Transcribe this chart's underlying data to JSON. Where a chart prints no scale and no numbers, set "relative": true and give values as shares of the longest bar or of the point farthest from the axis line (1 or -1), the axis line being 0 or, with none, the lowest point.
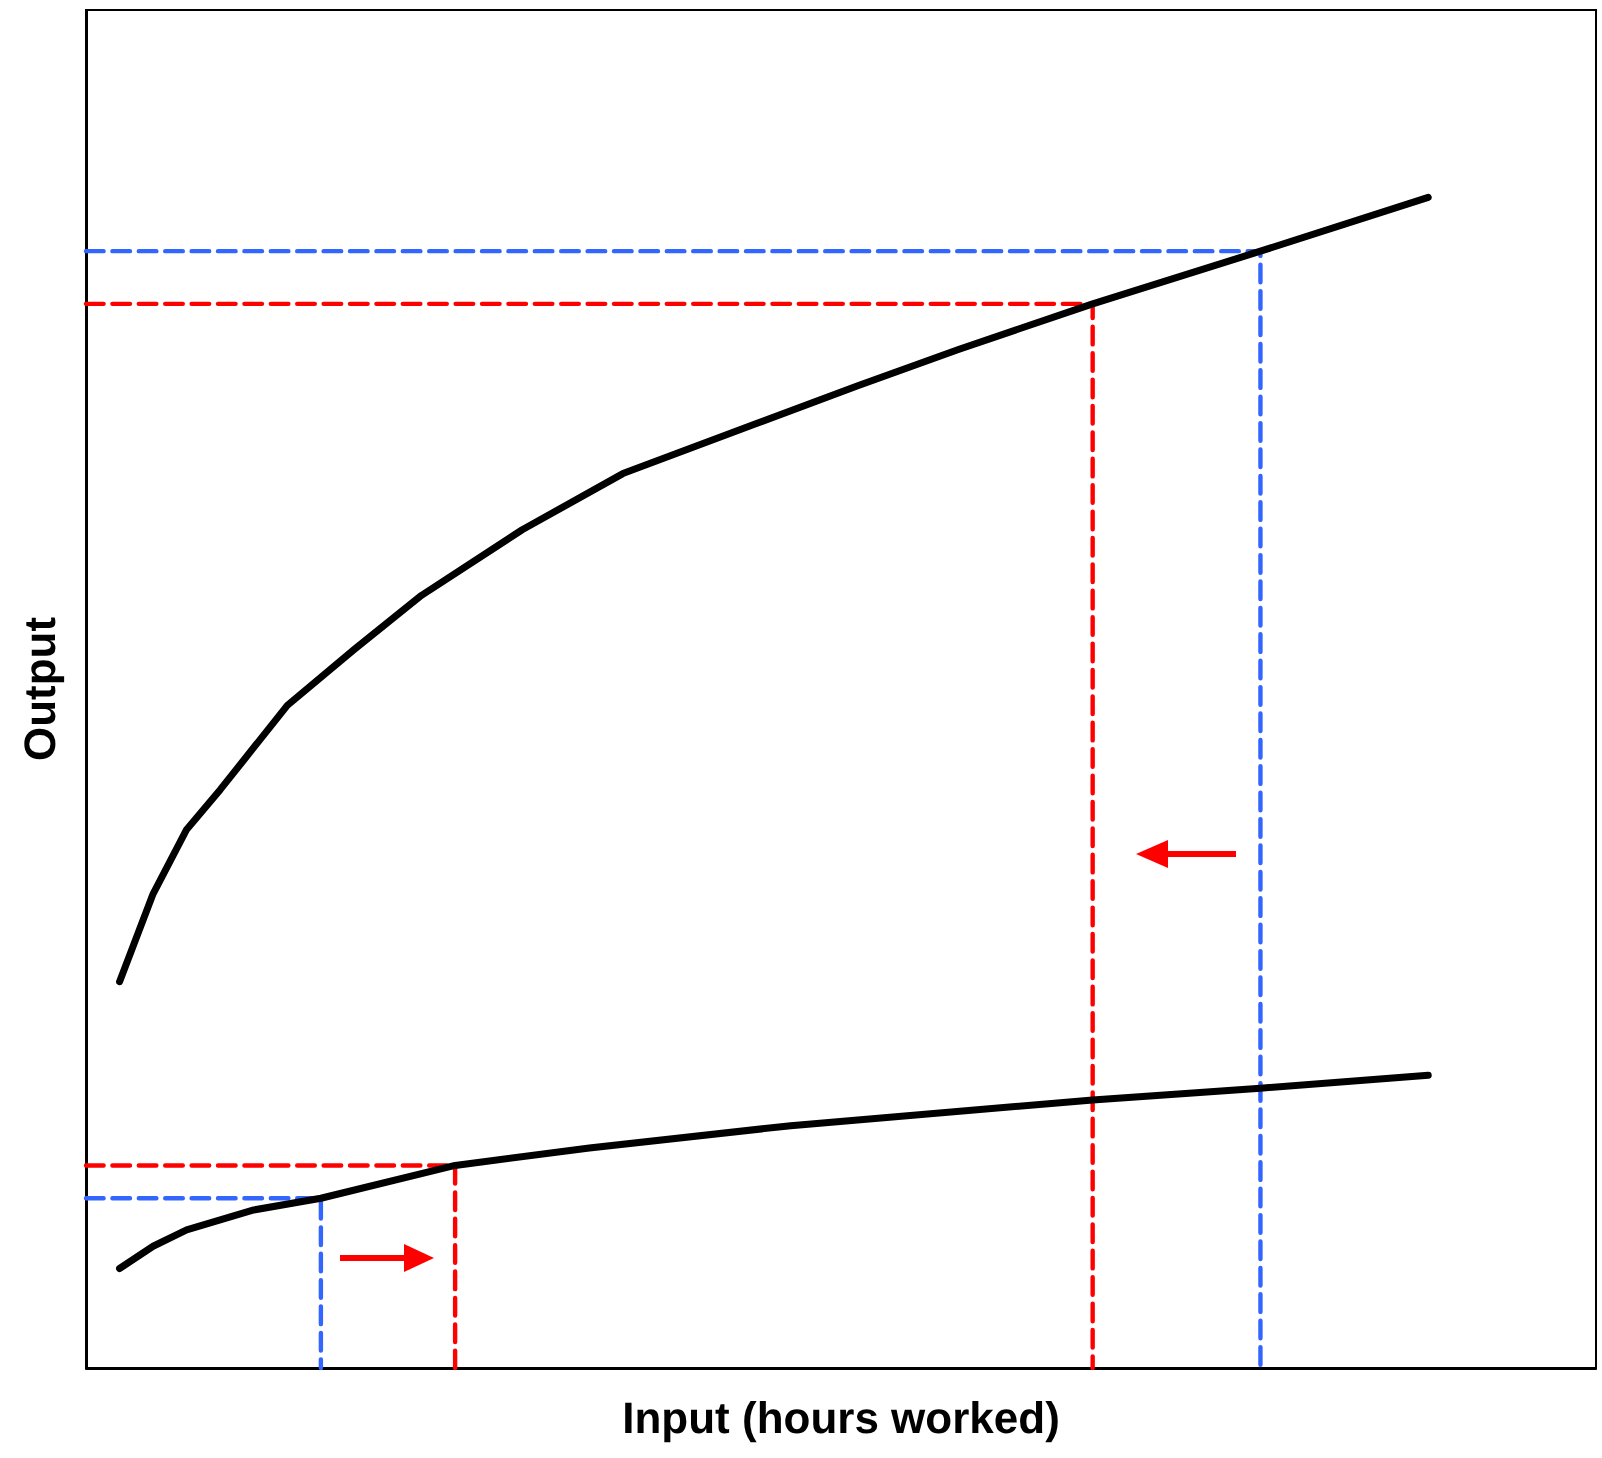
{
  "chart_data": {
    "type": "line",
    "relative": true,
    "xlabel": "Input (hours worked)",
    "ylabel": "Output",
    "grid": false,
    "marker": "none",
    "categories": [
      null,
      null,
      null,
      null,
      null,
      null,
      null,
      null,
      null,
      null,
      null,
      null,
      null,
      null,
      null,
      null,
      null,
      null,
      null,
      null,
      null,
      null,
      null,
      null,
      null,
      null,
      null,
      null,
      null,
      null,
      null,
      null,
      null,
      null,
      null,
      null,
      null,
      null,
      null,
      null,
      null,
      null,
      null,
      null,
      null,
      null
    ],
    "series": [
      {
        "color": "#000000",
        "line_style": "solid",
        "values": [
          null,
          0.33,
          0.405,
          0.46,
          0.494,
          null,
          0.566,
          null,
          0.614,
          null,
          0.66,
          null,
          null,
          0.716,
          null,
          null,
          0.764,
          null,
          null,
          null,
          0.807,
          null,
          null,
          0.839,
          null,
          null,
          0.87,
          null,
          null,
          null,
          0.909,
          null,
          null,
          null,
          null,
          0.954,
          null,
          null,
          null,
          null,
          1,
          null,
          null,
          null,
          null,
          null
        ]
      },
      {
        "color": "#000000",
        "line_style": "solid",
        "values": [
          null,
          0.085,
          0.104,
          0.118,
          null,
          0.135,
          null,
          0.145,
          null,
          null,
          null,
          0.173,
          null,
          null,
          null,
          0.188,
          null,
          null,
          null,
          null,
          null,
          0.207,
          null,
          null,
          null,
          null,
          null,
          null,
          null,
          null,
          0.229,
          null,
          null,
          null,
          null,
          0.239,
          null,
          null,
          null,
          null,
          0.25,
          null,
          null,
          null,
          null,
          null
        ]
      },
      {
        "type": "step",
        "color": "#3366ff",
        "line_style": "dashed",
        "values": [
          0.145,
          0.145,
          0.145,
          0.145,
          0.145,
          0.145,
          0.145,
          0,
          null,
          null,
          null,
          null,
          null,
          null,
          null,
          null,
          null,
          null,
          null,
          null,
          null,
          null,
          null,
          null,
          null,
          null,
          null,
          null,
          null,
          null,
          null,
          null,
          null,
          null,
          null,
          null,
          null,
          null,
          null,
          null,
          null,
          null,
          null,
          null,
          null,
          null
        ]
      },
      {
        "type": "step",
        "color": "#ff0000",
        "line_style": "dashed",
        "values": [
          0.173,
          0.173,
          0.173,
          0.173,
          0.173,
          0.173,
          0.173,
          0.173,
          0.173,
          0.173,
          0.173,
          0,
          null,
          null,
          null,
          null,
          null,
          null,
          null,
          null,
          null,
          null,
          null,
          null,
          null,
          null,
          null,
          null,
          null,
          null,
          null,
          null,
          null,
          null,
          null,
          null,
          null,
          null,
          null,
          null,
          null,
          null,
          null,
          null,
          null,
          null
        ]
      },
      {
        "type": "step",
        "color": "#ff0000",
        "line_style": "dashed",
        "values": [
          0.909,
          0.909,
          0.909,
          0.909,
          0.909,
          0.909,
          0.909,
          0.909,
          0.909,
          0.909,
          0.909,
          0.909,
          0.909,
          0.909,
          0.909,
          0.909,
          0.909,
          0.909,
          0.909,
          0.909,
          0.909,
          0.909,
          0.909,
          0.909,
          0.909,
          0.909,
          0.909,
          0.909,
          0.909,
          0.909,
          0,
          null,
          null,
          null,
          null,
          null,
          null,
          null,
          null,
          null,
          null,
          null,
          null,
          null,
          null,
          null
        ]
      },
      {
        "type": "step",
        "color": "#3366ff",
        "line_style": "dashed",
        "values": [
          0.954,
          0.954,
          0.954,
          0.954,
          0.954,
          0.954,
          0.954,
          0.954,
          0.954,
          0.954,
          0.954,
          0.954,
          0.954,
          0.954,
          0.954,
          0.954,
          0.954,
          0.954,
          0.954,
          0.954,
          0.954,
          0.954,
          0.954,
          0.954,
          0.954,
          0.954,
          0.954,
          0.954,
          0.954,
          0.954,
          0.954,
          0.954,
          0.954,
          0.954,
          0.954,
          0,
          null,
          null,
          null,
          null,
          null,
          null,
          null,
          null,
          null,
          null
        ]
      }
    ]
  }
}
